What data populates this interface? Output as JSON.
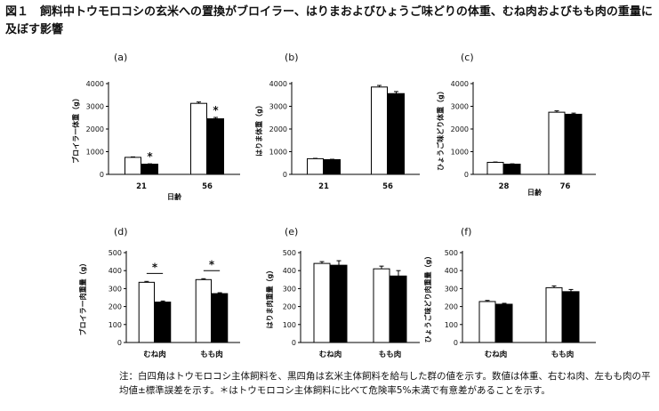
{
  "title": "図１　飼料中トウモロコシの玄米への置換がブロイラー、はりまおよびひょうご味どりの体重、むね肉およびもも肉の重量に及ぼす影響",
  "note": "注：白四角はトウモロコシ主体飼料を、黒四角は玄米主体飼料を給与した群の値を示す。数値は体重、右むね肉、左もも肉の平均値±標準誤差を示す。＊はトウモロコシ主体飼料に比べて危険率5%未満で有意差があることを示す。",
  "colors": {
    "white_bar": "#ffffff",
    "black_bar": "#000000",
    "axis": "#000000"
  },
  "chart_data": [
    {
      "panel": "(a)",
      "type": "bar",
      "ylabel": "ブロイラー体重（g）",
      "xlabel": "日齢",
      "categories": [
        "21",
        "56"
      ],
      "ylim": [
        0,
        4000
      ],
      "yticks": [
        0,
        1000,
        2000,
        3000,
        4000
      ],
      "series": [
        {
          "color": "white",
          "values": [
            750,
            3130
          ],
          "errors": [
            20,
            60
          ]
        },
        {
          "color": "black",
          "values": [
            450,
            2450
          ],
          "errors": [
            15,
            60
          ]
        }
      ],
      "significant": [
        {
          "category": "21",
          "label": "*"
        },
        {
          "category": "56",
          "label": "*"
        }
      ]
    },
    {
      "panel": "(b)",
      "type": "bar",
      "ylabel": "はりま体重（g）",
      "xlabel": "",
      "categories": [
        "21",
        "56"
      ],
      "ylim": [
        0,
        4000
      ],
      "yticks": [
        0,
        1000,
        2000,
        3000,
        4000
      ],
      "series": [
        {
          "color": "white",
          "values": [
            690,
            3850
          ],
          "errors": [
            15,
            70
          ]
        },
        {
          "color": "black",
          "values": [
            650,
            3560
          ],
          "errors": [
            15,
            90
          ]
        }
      ],
      "significant": []
    },
    {
      "panel": "(c)",
      "type": "bar",
      "ylabel": "ひょうご味どり体重（g）",
      "xlabel": "日齢",
      "categories": [
        "28",
        "76"
      ],
      "ylim": [
        0,
        4000
      ],
      "yticks": [
        0,
        1000,
        2000,
        3000,
        4000
      ],
      "series": [
        {
          "color": "white",
          "values": [
            530,
            2740
          ],
          "errors": [
            15,
            60
          ]
        },
        {
          "color": "black",
          "values": [
            450,
            2650
          ],
          "errors": [
            15,
            50
          ]
        }
      ],
      "significant": []
    },
    {
      "panel": "(d)",
      "type": "bar",
      "ylabel": "ブロイラー肉重量（g）",
      "xlabel": "",
      "categories": [
        "むね肉",
        "もも肉"
      ],
      "ylim": [
        0,
        500
      ],
      "yticks": [
        0,
        100,
        200,
        300,
        400,
        500
      ],
      "series": [
        {
          "color": "white",
          "values": [
            335,
            350
          ],
          "errors": [
            5,
            5
          ]
        },
        {
          "color": "black",
          "values": [
            225,
            272
          ],
          "errors": [
            6,
            5
          ]
        }
      ],
      "significant": [
        {
          "category": "むね肉",
          "label": "*"
        },
        {
          "category": "もも肉",
          "label": "*"
        }
      ]
    },
    {
      "panel": "(e)",
      "type": "bar",
      "ylabel": "はりま肉重量（g）",
      "xlabel": "",
      "categories": [
        "むね肉",
        "もも肉"
      ],
      "ylim": [
        0,
        500
      ],
      "yticks": [
        0,
        100,
        200,
        300,
        400,
        500
      ],
      "series": [
        {
          "color": "white",
          "values": [
            440,
            410
          ],
          "errors": [
            10,
            15
          ]
        },
        {
          "color": "black",
          "values": [
            430,
            370
          ],
          "errors": [
            25,
            30
          ]
        }
      ],
      "significant": []
    },
    {
      "panel": "(f)",
      "type": "bar",
      "ylabel": "ひょうご味どり肉重量（g）",
      "xlabel": "",
      "categories": [
        "むね肉",
        "もも肉"
      ],
      "ylim": [
        0,
        500
      ],
      "yticks": [
        0,
        100,
        200,
        300,
        400,
        500
      ],
      "series": [
        {
          "color": "white",
          "values": [
            228,
            305
          ],
          "errors": [
            6,
            10
          ]
        },
        {
          "color": "black",
          "values": [
            213,
            283
          ],
          "errors": [
            5,
            12
          ]
        }
      ],
      "significant": []
    }
  ]
}
